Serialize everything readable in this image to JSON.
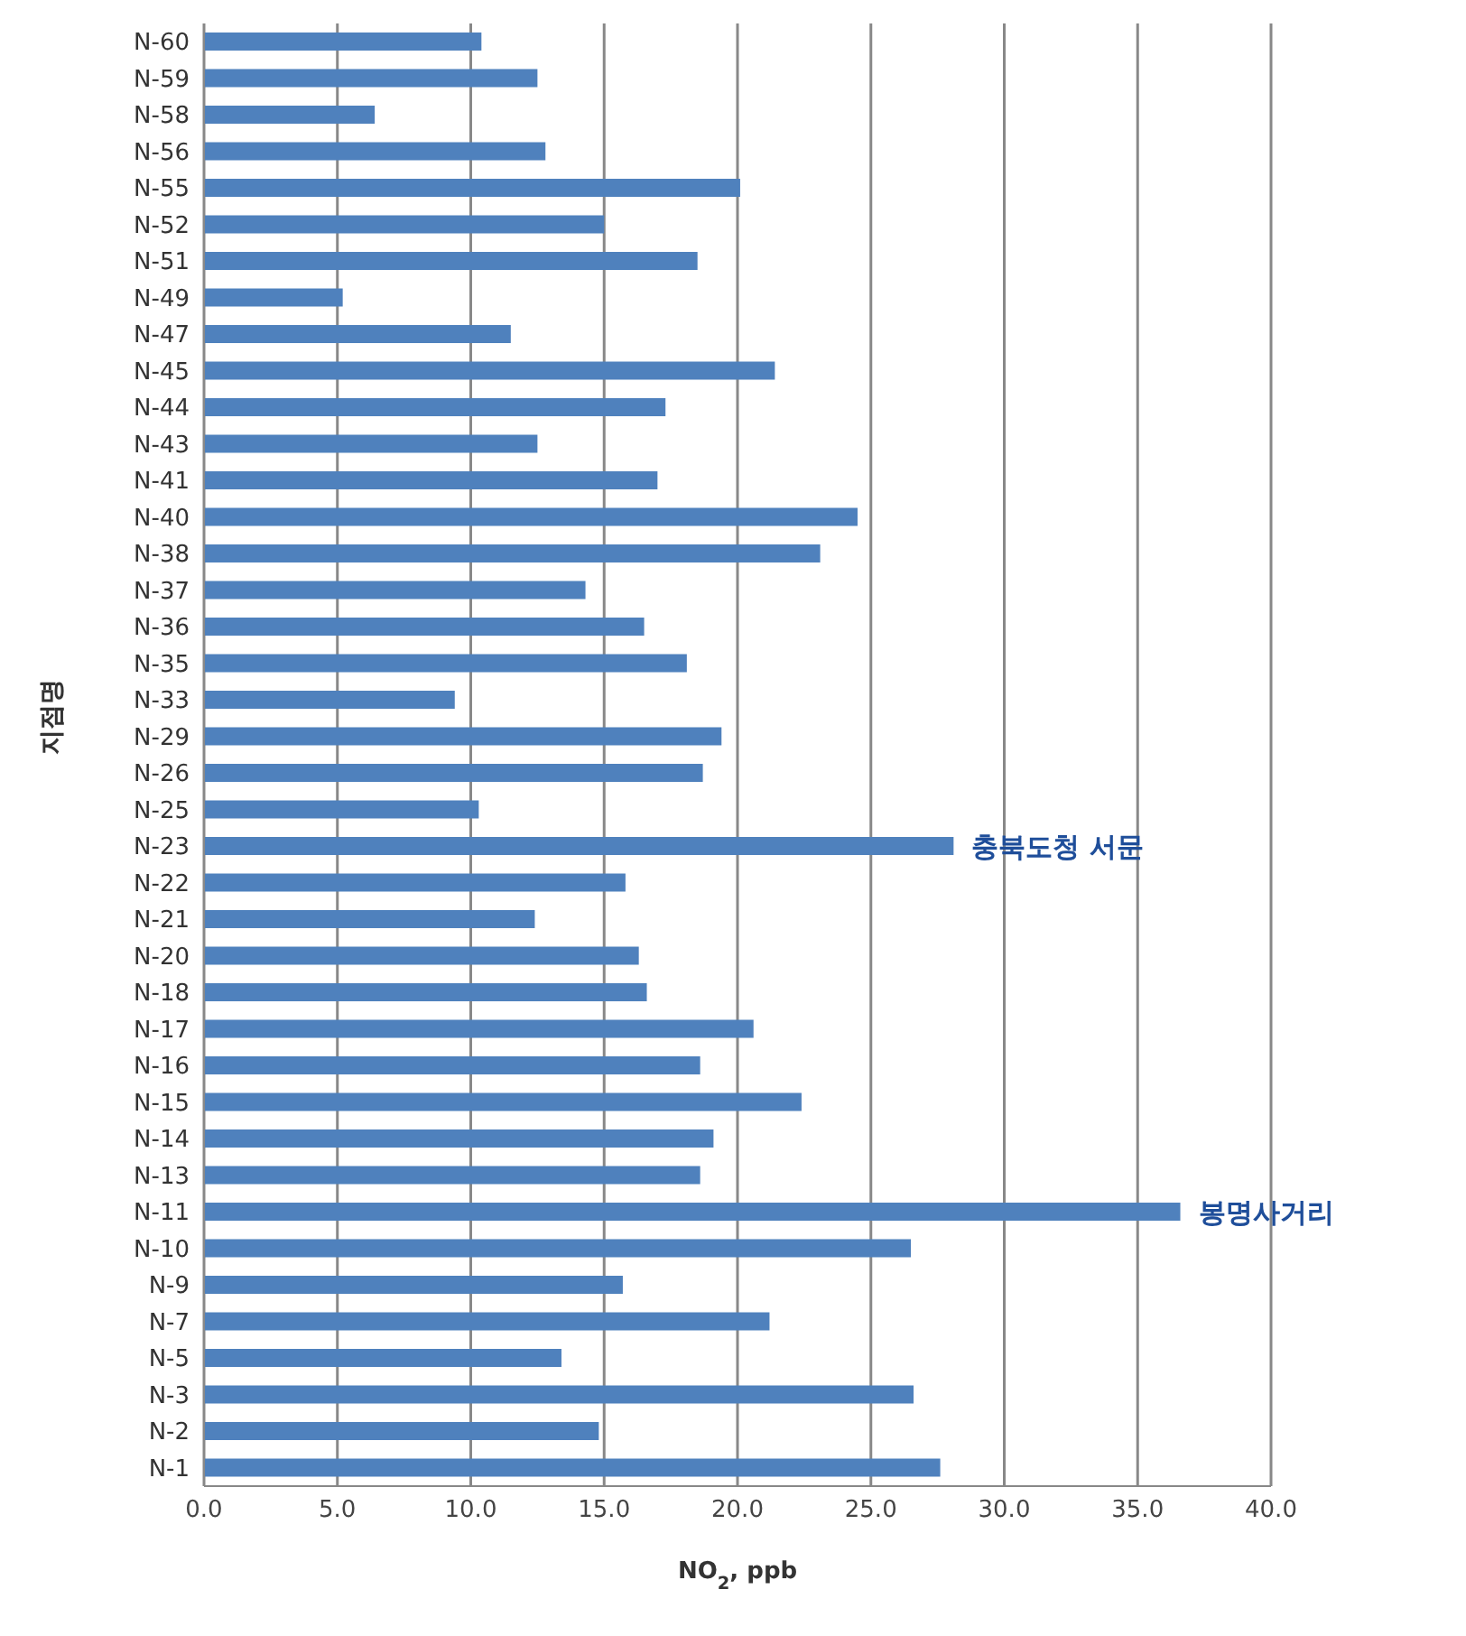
{
  "chart_data": {
    "type": "bar",
    "orientation": "horizontal",
    "xlabel": "NO$_{2}$, ppb",
    "ylabel": "지점명",
    "categories": [
      "N-60",
      "N-59",
      "N-58",
      "N-56",
      "N-55",
      "N-52",
      "N-51",
      "N-49",
      "N-47",
      "N-45",
      "N-44",
      "N-43",
      "N-41",
      "N-40",
      "N-38",
      "N-37",
      "N-36",
      "N-35",
      "N-33",
      "N-29",
      "N-26",
      "N-25",
      "N-23",
      "N-22",
      "N-21",
      "N-20",
      "N-18",
      "N-17",
      "N-16",
      "N-15",
      "N-14",
      "N-13",
      "N-11",
      "N-10",
      "N-9",
      "N-7",
      "N-5",
      "N-3",
      "N-2",
      "N-1"
    ],
    "values": [
      10.4,
      12.5,
      6.4,
      12.8,
      20.1,
      15.0,
      18.5,
      5.2,
      11.5,
      21.4,
      17.3,
      12.5,
      17.0,
      24.5,
      23.1,
      14.3,
      16.5,
      18.1,
      9.4,
      19.4,
      18.7,
      10.3,
      28.1,
      15.8,
      12.4,
      16.3,
      16.6,
      20.6,
      18.6,
      22.4,
      19.1,
      18.6,
      36.6,
      26.5,
      15.7,
      21.2,
      13.4,
      26.6,
      14.8,
      27.6
    ],
    "color": "#4f81bd",
    "xlim": [
      0,
      40
    ],
    "xticks": [
      {
        "value": 0,
        "label": "0.0"
      },
      {
        "value": 5,
        "label": "5.0"
      },
      {
        "value": 10,
        "label": "10.0"
      },
      {
        "value": 15,
        "label": "15.0"
      },
      {
        "value": 20,
        "label": "20.0"
      },
      {
        "value": 25,
        "label": "25.0"
      },
      {
        "value": 30,
        "label": "30.0"
      },
      {
        "value": 35,
        "label": "35.0"
      },
      {
        "value": 40,
        "label": "40.0"
      }
    ],
    "grid": "x",
    "legend": false,
    "annotations": [
      {
        "text": "충북도청 서문",
        "x": 28.1,
        "y": "N-23"
      },
      {
        "text": "봉명사거리",
        "x": 36.6,
        "y": "N-11"
      }
    ]
  }
}
